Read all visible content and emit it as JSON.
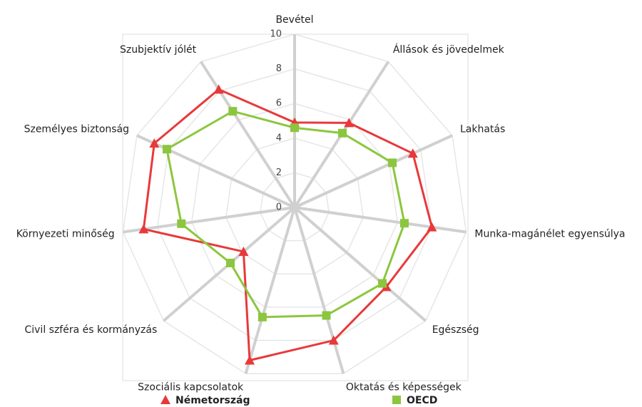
{
  "chart_data": {
    "type": "radar",
    "categories": [
      "Bevétel",
      "Állások és jövedelmek",
      "Lakhatás",
      "Munka-magánélet egyensúlya",
      "Egészség",
      "Oktatás és képességek",
      "Szociális kapcsolatok",
      "Civil szféra és kormányzás",
      "Környezeti minőség",
      "Személyes biztonság",
      "Szubjektív jólét"
    ],
    "series": [
      {
        "name": "Németország",
        "color": "#e8393a",
        "marker": "triangle",
        "values": [
          4.9,
          5.8,
          7.5,
          8.0,
          7.0,
          8.0,
          9.2,
          3.9,
          8.8,
          8.9,
          8.1
        ]
      },
      {
        "name": "OECD",
        "color": "#8cc63f",
        "marker": "square",
        "values": [
          4.6,
          5.1,
          6.2,
          6.4,
          6.7,
          6.5,
          6.6,
          4.9,
          6.6,
          8.1,
          6.6
        ]
      }
    ],
    "ylim": [
      0,
      10
    ],
    "yticks": [
      0,
      2,
      4,
      6,
      8,
      10
    ],
    "grid": true
  }
}
